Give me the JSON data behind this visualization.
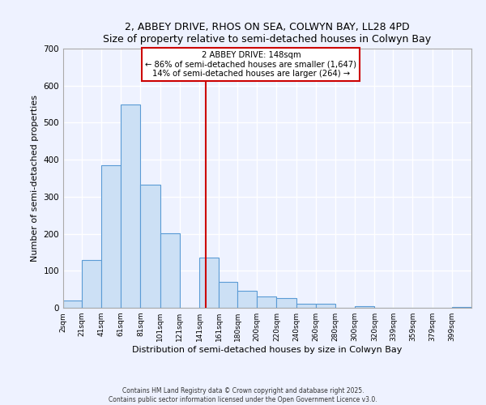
{
  "title": "2, ABBEY DRIVE, RHOS ON SEA, COLWYN BAY, LL28 4PD",
  "subtitle": "Size of property relative to semi-detached houses in Colwyn Bay",
  "xlabel": "Distribution of semi-detached houses by size in Colwyn Bay",
  "ylabel": "Number of semi-detached properties",
  "bin_labels": [
    "2sqm",
    "21sqm",
    "41sqm",
    "61sqm",
    "81sqm",
    "101sqm",
    "121sqm",
    "141sqm",
    "161sqm",
    "180sqm",
    "200sqm",
    "220sqm",
    "240sqm",
    "260sqm",
    "280sqm",
    "300sqm",
    "320sqm",
    "339sqm",
    "359sqm",
    "379sqm",
    "399sqm"
  ],
  "bar_heights": [
    20,
    128,
    385,
    548,
    332,
    202,
    0,
    136,
    70,
    45,
    30,
    26,
    12,
    10,
    0,
    5,
    0,
    0,
    0,
    0,
    3
  ],
  "bar_left_edges": [
    2,
    21,
    41,
    61,
    81,
    101,
    121,
    141,
    161,
    180,
    200,
    220,
    240,
    260,
    280,
    300,
    320,
    339,
    359,
    379,
    399
  ],
  "bar_widths": [
    19,
    20,
    20,
    20,
    20,
    20,
    20,
    20,
    19,
    20,
    20,
    20,
    20,
    20,
    20,
    20,
    19,
    20,
    20,
    20,
    20
  ],
  "ylim": [
    0,
    700
  ],
  "yticks": [
    0,
    100,
    200,
    300,
    400,
    500,
    600,
    700
  ],
  "bar_color": "#cce0f5",
  "bar_edge_color": "#5b9bd5",
  "vline_x": 148,
  "vline_color": "#cc0000",
  "annotation_title": "2 ABBEY DRIVE: 148sqm",
  "annotation_line1": "← 86% of semi-detached houses are smaller (1,647)",
  "annotation_line2": "14% of semi-detached houses are larger (264) →",
  "annotation_box_color": "#ffffff",
  "annotation_box_edge": "#cc0000",
  "background_color": "#eef2ff",
  "plot_bg_color": "#eef2ff",
  "grid_color": "#ffffff",
  "footer_line1": "Contains HM Land Registry data © Crown copyright and database right 2025.",
  "footer_line2": "Contains public sector information licensed under the Open Government Licence v3.0."
}
